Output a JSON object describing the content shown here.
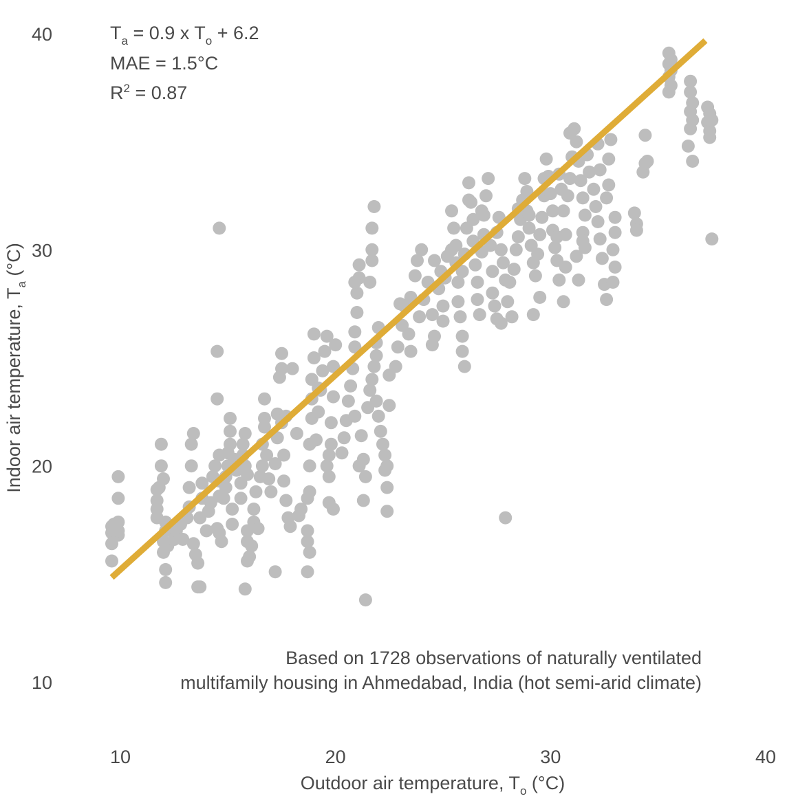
{
  "chart_data": {
    "type": "scatter",
    "xlabel": "Outdoor air temperature, T",
    "xlabel_sub": "o",
    "xlabel_unit": " (°C)",
    "ylabel": "Indoor air temperature, T",
    "ylabel_sub": "a",
    "ylabel_unit": " (°C)",
    "xlim": [
      10,
      40
    ],
    "ylim": [
      10,
      40
    ],
    "xticks": [
      10,
      20,
      30,
      40
    ],
    "yticks": [
      10,
      20,
      30,
      40
    ],
    "grid": false,
    "point_color": "#bdbdbd",
    "line_color": "#dfac37",
    "fit": {
      "slope": 0.9,
      "intercept": 6.2,
      "x_range": [
        9.6,
        37.2
      ]
    },
    "annotations": {
      "equation": {
        "a1": "T",
        "a1_sub": "a",
        "a2": " = 0.9 x T",
        "a2_sub": "o",
        "a3": " + 6.2"
      },
      "mae": "MAE = 1.5°C",
      "r2": {
        "a1": "R",
        "a1_sup": "2",
        "a2": " = 0.87"
      },
      "note_line1": "Based on 1728 observations of naturally ventilated",
      "note_line2": "multifamily housing in Ahmedabad, India (hot semi-arid climate)"
    },
    "points": [
      [
        9.6,
        15.6
      ],
      [
        9.6,
        16.4
      ],
      [
        9.6,
        16.9
      ],
      [
        9.6,
        17.2
      ],
      [
        9.7,
        17.0
      ],
      [
        9.7,
        17.3
      ],
      [
        9.9,
        16.8
      ],
      [
        9.9,
        17.0
      ],
      [
        9.9,
        17.4
      ],
      [
        9.9,
        18.5
      ],
      [
        9.9,
        19.5
      ],
      [
        11.7,
        17.6
      ],
      [
        11.7,
        18.0
      ],
      [
        11.7,
        18.4
      ],
      [
        11.7,
        18.9
      ],
      [
        11.8,
        19.0
      ],
      [
        12.0,
        19.4
      ],
      [
        11.9,
        20.0
      ],
      [
        11.9,
        21.0
      ],
      [
        12.0,
        16.0
      ],
      [
        12.0,
        16.5
      ],
      [
        12.1,
        17.0
      ],
      [
        12.1,
        17.4
      ],
      [
        12.1,
        15.2
      ],
      [
        12.1,
        14.6
      ],
      [
        12.2,
        16.3
      ],
      [
        12.5,
        16.6
      ],
      [
        12.6,
        17.0
      ],
      [
        12.8,
        17.3
      ],
      [
        12.9,
        16.6
      ],
      [
        13.1,
        17.6
      ],
      [
        13.2,
        18.1
      ],
      [
        13.2,
        19.0
      ],
      [
        13.3,
        20.0
      ],
      [
        13.3,
        21.0
      ],
      [
        13.4,
        21.5
      ],
      [
        13.4,
        16.4
      ],
      [
        13.5,
        15.9
      ],
      [
        13.6,
        14.4
      ],
      [
        13.7,
        14.4
      ],
      [
        13.6,
        15.5
      ],
      [
        13.7,
        17.6
      ],
      [
        13.8,
        18.5
      ],
      [
        13.8,
        19.2
      ],
      [
        14.0,
        17.0
      ],
      [
        14.1,
        17.9
      ],
      [
        14.2,
        18.3
      ],
      [
        14.3,
        19.5
      ],
      [
        14.4,
        20.0
      ],
      [
        14.5,
        17.1
      ],
      [
        14.6,
        18.6
      ],
      [
        14.6,
        19.3
      ],
      [
        14.6,
        20.5
      ],
      [
        14.7,
        16.5
      ],
      [
        14.6,
        16.9
      ],
      [
        14.5,
        23.1
      ],
      [
        14.5,
        25.3
      ],
      [
        14.6,
        31.0
      ],
      [
        14.8,
        18.5
      ],
      [
        14.9,
        19.0
      ],
      [
        14.9,
        19.5
      ],
      [
        15.0,
        20.0
      ],
      [
        15.0,
        20.6
      ],
      [
        15.1,
        21.0
      ],
      [
        15.1,
        21.6
      ],
      [
        15.1,
        22.2
      ],
      [
        15.2,
        17.3
      ],
      [
        15.2,
        18.0
      ],
      [
        15.3,
        20.3
      ],
      [
        15.4,
        19.8
      ],
      [
        15.6,
        18.5
      ],
      [
        15.6,
        19.2
      ],
      [
        15.7,
        20.5
      ],
      [
        15.7,
        21.0
      ],
      [
        15.8,
        21.5
      ],
      [
        15.8,
        20.0
      ],
      [
        15.9,
        19.6
      ],
      [
        15.9,
        17.0
      ],
      [
        15.9,
        16.5
      ],
      [
        15.9,
        15.6
      ],
      [
        15.8,
        14.3
      ],
      [
        16.0,
        15.8
      ],
      [
        16.1,
        16.3
      ],
      [
        16.2,
        17.4
      ],
      [
        16.2,
        18.0
      ],
      [
        16.3,
        18.8
      ],
      [
        16.4,
        17.1
      ],
      [
        16.5,
        19.5
      ],
      [
        16.6,
        20.0
      ],
      [
        16.6,
        21.0
      ],
      [
        16.7,
        21.8
      ],
      [
        16.7,
        22.2
      ],
      [
        16.7,
        23.1
      ],
      [
        16.8,
        20.5
      ],
      [
        16.9,
        19.4
      ],
      [
        17.0,
        18.8
      ],
      [
        17.2,
        20.1
      ],
      [
        17.3,
        21.3
      ],
      [
        17.3,
        22.4
      ],
      [
        17.4,
        24.1
      ],
      [
        17.5,
        24.5
      ],
      [
        17.5,
        25.2
      ],
      [
        17.5,
        22.0
      ],
      [
        17.2,
        15.1
      ],
      [
        17.6,
        19.3
      ],
      [
        17.7,
        18.4
      ],
      [
        17.8,
        17.6
      ],
      [
        17.9,
        17.2
      ],
      [
        17.6,
        20.5
      ],
      [
        17.7,
        22.3
      ],
      [
        18.0,
        24.5
      ],
      [
        18.3,
        17.7
      ],
      [
        18.4,
        18.0
      ],
      [
        18.7,
        18.5
      ],
      [
        18.8,
        18.8
      ],
      [
        18.7,
        17.0
      ],
      [
        18.7,
        16.5
      ],
      [
        18.8,
        16.0
      ],
      [
        18.7,
        15.1
      ],
      [
        18.8,
        20.0
      ],
      [
        18.8,
        21.0
      ],
      [
        18.9,
        22.2
      ],
      [
        18.9,
        23.1
      ],
      [
        18.9,
        24.0
      ],
      [
        19.0,
        25.0
      ],
      [
        19.0,
        26.1
      ],
      [
        19.1,
        21.2
      ],
      [
        19.2,
        22.5
      ],
      [
        19.3,
        23.5
      ],
      [
        19.4,
        24.4
      ],
      [
        19.5,
        25.3
      ],
      [
        19.6,
        26.0
      ],
      [
        19.6,
        20.0
      ],
      [
        19.7,
        19.5
      ],
      [
        19.7,
        20.5
      ],
      [
        19.8,
        21.0
      ],
      [
        19.8,
        22.0
      ],
      [
        19.9,
        23.2
      ],
      [
        19.9,
        24.6
      ],
      [
        20.0,
        25.6
      ],
      [
        19.7,
        18.3
      ],
      [
        19.9,
        18.0
      ],
      [
        20.3,
        20.6
      ],
      [
        20.4,
        21.3
      ],
      [
        20.5,
        22.1
      ],
      [
        20.6,
        23.0
      ],
      [
        20.7,
        23.7
      ],
      [
        20.8,
        24.5
      ],
      [
        20.9,
        25.5
      ],
      [
        20.9,
        26.2
      ],
      [
        21.0,
        27.1
      ],
      [
        21.0,
        28.0
      ],
      [
        21.1,
        28.7
      ],
      [
        21.1,
        29.3
      ],
      [
        20.9,
        22.3
      ],
      [
        21.1,
        20.0
      ],
      [
        21.2,
        21.4
      ],
      [
        21.3,
        20.3
      ],
      [
        21.4,
        19.5
      ],
      [
        21.3,
        18.4
      ],
      [
        21.4,
        13.8
      ],
      [
        21.5,
        22.7
      ],
      [
        21.6,
        23.5
      ],
      [
        21.7,
        24.0
      ],
      [
        21.8,
        24.6
      ],
      [
        21.9,
        25.1
      ],
      [
        21.9,
        25.7
      ],
      [
        22.0,
        26.4
      ],
      [
        21.6,
        28.5
      ],
      [
        21.7,
        30.0
      ],
      [
        21.7,
        31.0
      ],
      [
        21.8,
        32.0
      ],
      [
        21.7,
        29.5
      ],
      [
        21.9,
        23.0
      ],
      [
        22.0,
        22.3
      ],
      [
        22.1,
        21.6
      ],
      [
        22.2,
        21.0
      ],
      [
        22.3,
        20.5
      ],
      [
        22.3,
        19.8
      ],
      [
        22.4,
        19.0
      ],
      [
        22.4,
        17.9
      ],
      [
        22.5,
        22.8
      ],
      [
        22.4,
        20.0
      ],
      [
        22.5,
        24.2
      ],
      [
        22.8,
        24.6
      ],
      [
        22.9,
        25.5
      ],
      [
        23.1,
        26.5
      ],
      [
        23.2,
        27.4
      ],
      [
        23.4,
        26.1
      ],
      [
        23.5,
        25.3
      ],
      [
        23.5,
        27.8
      ],
      [
        23.7,
        28.8
      ],
      [
        23.8,
        29.5
      ],
      [
        24.0,
        30.0
      ],
      [
        23.9,
        26.9
      ],
      [
        24.1,
        27.7
      ],
      [
        24.3,
        28.5
      ],
      [
        24.5,
        27.0
      ],
      [
        24.6,
        26.0
      ],
      [
        24.5,
        25.6
      ],
      [
        24.8,
        28.2
      ],
      [
        24.9,
        29.0
      ],
      [
        25.0,
        27.4
      ],
      [
        25.1,
        28.7
      ],
      [
        25.2,
        29.7
      ],
      [
        25.4,
        30.0
      ],
      [
        25.4,
        31.8
      ],
      [
        25.5,
        31.0
      ],
      [
        25.6,
        30.2
      ],
      [
        25.6,
        29.4
      ],
      [
        25.7,
        28.5
      ],
      [
        25.7,
        27.6
      ],
      [
        25.8,
        26.9
      ],
      [
        25.9,
        26.0
      ],
      [
        25.9,
        25.3
      ],
      [
        26.0,
        24.6
      ],
      [
        26.0,
        29.8
      ],
      [
        26.1,
        31.0
      ],
      [
        26.2,
        32.3
      ],
      [
        26.2,
        33.1
      ],
      [
        26.3,
        32.2
      ],
      [
        26.4,
        31.4
      ],
      [
        26.4,
        30.4
      ],
      [
        26.5,
        29.3
      ],
      [
        26.6,
        28.5
      ],
      [
        26.6,
        27.7
      ],
      [
        26.7,
        27.0
      ],
      [
        26.8,
        29.9
      ],
      [
        26.9,
        30.7
      ],
      [
        26.9,
        31.6
      ],
      [
        27.0,
        32.5
      ],
      [
        27.1,
        33.3
      ],
      [
        27.2,
        30.2
      ],
      [
        27.3,
        29.0
      ],
      [
        27.3,
        28.0
      ],
      [
        27.4,
        27.4
      ],
      [
        27.5,
        26.8
      ],
      [
        27.5,
        30.8
      ],
      [
        27.6,
        31.5
      ],
      [
        27.7,
        30.0
      ],
      [
        27.8,
        29.4
      ],
      [
        27.9,
        28.6
      ],
      [
        28.0,
        27.6
      ],
      [
        28.1,
        28.5
      ],
      [
        27.7,
        26.6
      ],
      [
        28.2,
        26.9
      ],
      [
        27.9,
        17.6
      ],
      [
        28.3,
        29.1
      ],
      [
        28.4,
        30.0
      ],
      [
        28.5,
        30.6
      ],
      [
        28.6,
        31.4
      ],
      [
        28.7,
        32.3
      ],
      [
        28.8,
        33.3
      ],
      [
        28.9,
        32.7
      ],
      [
        28.9,
        31.8
      ],
      [
        29.0,
        31.0
      ],
      [
        29.1,
        30.2
      ],
      [
        29.2,
        29.4
      ],
      [
        29.3,
        28.8
      ],
      [
        29.4,
        29.8
      ],
      [
        29.5,
        30.7
      ],
      [
        29.6,
        31.5
      ],
      [
        29.7,
        32.5
      ],
      [
        29.7,
        33.3
      ],
      [
        29.8,
        34.2
      ],
      [
        29.9,
        33.4
      ],
      [
        30.0,
        32.6
      ],
      [
        30.1,
        31.8
      ],
      [
        30.1,
        30.9
      ],
      [
        30.2,
        30.1
      ],
      [
        30.3,
        29.5
      ],
      [
        30.4,
        33.5
      ],
      [
        30.5,
        32.8
      ],
      [
        30.6,
        31.8
      ],
      [
        30.7,
        30.7
      ],
      [
        30.8,
        32.5
      ],
      [
        30.9,
        33.3
      ],
      [
        31.0,
        34.3
      ],
      [
        30.7,
        29.2
      ],
      [
        30.6,
        27.6
      ],
      [
        30.3,
        30.6
      ],
      [
        30.4,
        28.6
      ],
      [
        31.1,
        35.6
      ],
      [
        31.2,
        35.0
      ],
      [
        31.3,
        34.1
      ],
      [
        31.4,
        33.2
      ],
      [
        31.5,
        32.4
      ],
      [
        31.6,
        31.6
      ],
      [
        31.5,
        30.8
      ],
      [
        31.6,
        30.1
      ],
      [
        31.7,
        34.4
      ],
      [
        31.8,
        33.6
      ],
      [
        31.2,
        29.7
      ],
      [
        31.3,
        28.6
      ],
      [
        29.5,
        27.8
      ],
      [
        29.2,
        27.0
      ],
      [
        31.5,
        30.4
      ],
      [
        32.0,
        32.8
      ],
      [
        32.1,
        32.0
      ],
      [
        32.2,
        31.3
      ],
      [
        32.3,
        30.5
      ],
      [
        32.4,
        29.6
      ],
      [
        32.5,
        28.4
      ],
      [
        32.6,
        27.7
      ],
      [
        32.7,
        33.0
      ],
      [
        32.7,
        34.2
      ],
      [
        32.8,
        35.1
      ],
      [
        32.9,
        30.0
      ],
      [
        33.0,
        29.2
      ],
      [
        32.9,
        28.5
      ],
      [
        33.0,
        31.5
      ],
      [
        33.0,
        30.8
      ],
      [
        32.6,
        32.4
      ],
      [
        33.9,
        31.7
      ],
      [
        34.0,
        31.2
      ],
      [
        34.0,
        30.9
      ],
      [
        34.4,
        35.3
      ],
      [
        34.3,
        33.6
      ],
      [
        34.5,
        34.1
      ],
      [
        34.4,
        34.0
      ],
      [
        35.5,
        39.1
      ],
      [
        35.5,
        38.6
      ],
      [
        35.6,
        38.3
      ],
      [
        35.5,
        38.0
      ],
      [
        35.6,
        37.6
      ],
      [
        35.5,
        37.3
      ],
      [
        35.6,
        38.8
      ],
      [
        36.5,
        37.8
      ],
      [
        36.5,
        37.3
      ],
      [
        36.6,
        36.8
      ],
      [
        36.5,
        36.4
      ],
      [
        36.6,
        36.0
      ],
      [
        36.5,
        35.6
      ],
      [
        36.4,
        34.8
      ],
      [
        36.6,
        34.1
      ],
      [
        37.3,
        36.6
      ],
      [
        37.4,
        36.3
      ],
      [
        37.3,
        35.9
      ],
      [
        37.4,
        35.5
      ],
      [
        37.5,
        36.0
      ],
      [
        37.4,
        35.2
      ],
      [
        37.5,
        30.5
      ],
      [
        32.2,
        34.9
      ],
      [
        31.7,
        34.4
      ],
      [
        32.3,
        33.7
      ],
      [
        30.9,
        35.4
      ],
      [
        28.5,
        31.9
      ],
      [
        29.0,
        31.6
      ],
      [
        26.8,
        31.8
      ],
      [
        25.9,
        29.0
      ],
      [
        25.0,
        26.7
      ],
      [
        24.6,
        29.5
      ],
      [
        23.0,
        27.5
      ],
      [
        20.9,
        28.5
      ],
      [
        19.2,
        23.6
      ],
      [
        18.2,
        21.5
      ]
    ]
  }
}
